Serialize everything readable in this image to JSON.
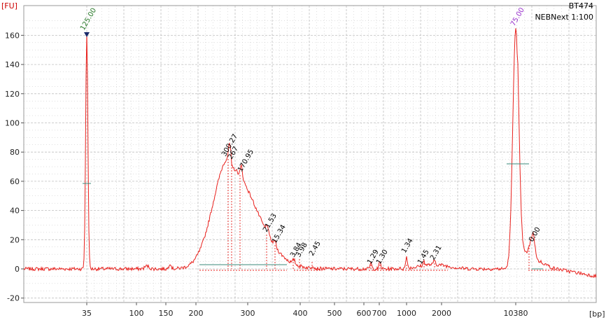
{
  "chart_data": {
    "type": "line",
    "sample_name": "BT474",
    "sample_subtitle": "NEBNext 1:100",
    "ylabel": "[FU]",
    "xlabel": "[bp]",
    "ylim": [
      -22,
      172
    ],
    "x_tick_labels": [
      "35",
      "100",
      "150",
      "200",
      "300",
      "400",
      "500",
      "600",
      "700",
      "1000",
      "2000",
      "10380"
    ],
    "y_ticks": [
      -20,
      0,
      20,
      40,
      60,
      80,
      100,
      120,
      140,
      160
    ],
    "colors": {
      "trace": "#e8201c",
      "marker_label": "#2a7a2a",
      "upper_label": "#9933cc",
      "grid": "#bfbfbf",
      "axis": "#9a9a9a"
    },
    "markers": [
      {
        "label": "125.00",
        "bp": "35",
        "fu": 162
      },
      {
        "label": "75.00",
        "bp": "10380",
        "fu": 165
      }
    ],
    "peak_labels": [
      "300.27",
      "267",
      "170.95",
      "21.53",
      "15.34",
      "3.84",
      "3.98",
      "2.45",
      "1.29",
      "1.30",
      "1.34",
      "1.45",
      "2.31",
      "0.00"
    ]
  }
}
